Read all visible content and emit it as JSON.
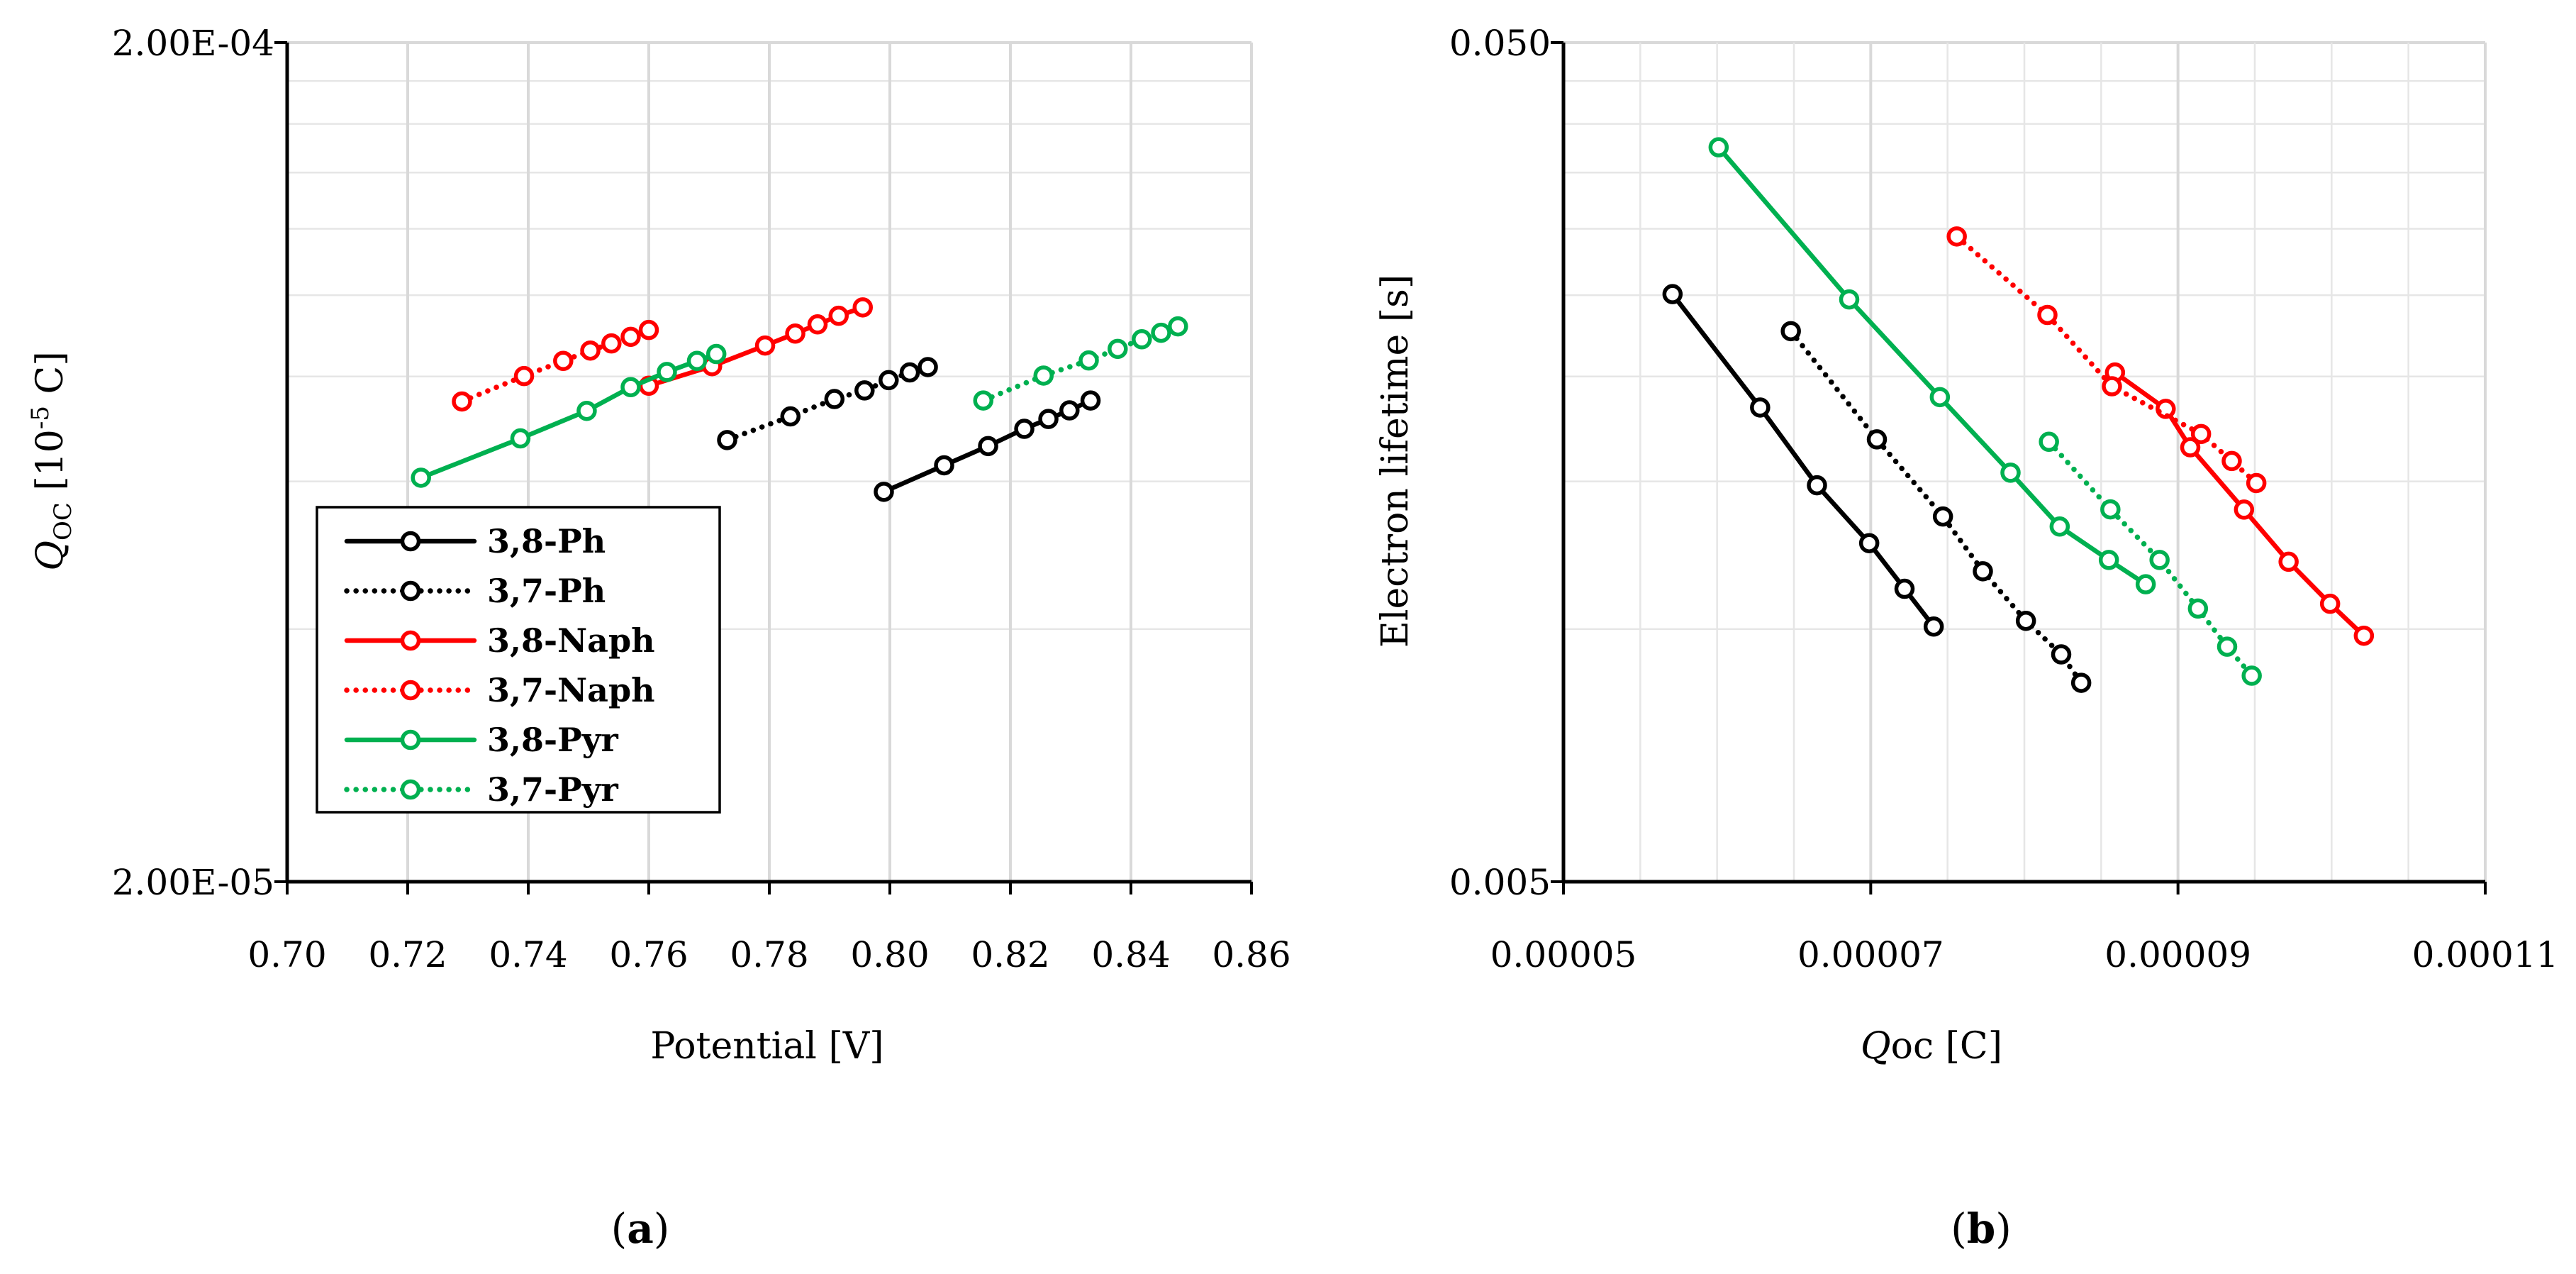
{
  "chart_data": [
    {
      "type": "line",
      "panel_label": "(a)",
      "title": "",
      "xlabel": "Potential [V]",
      "ylabel_main": "Q",
      "ylabel_sub": "OC",
      "ylabel_rest": " [10",
      "ylabel_exp": "-5",
      "ylabel_unit": " C]",
      "x_scale": "linear",
      "y_scale": "log",
      "xlim": [
        0.7,
        0.86
      ],
      "ylim": [
        2e-05,
        0.0002
      ],
      "x_ticks": [
        {
          "value": 0.7,
          "label": "0.70"
        },
        {
          "value": 0.72,
          "label": "0.72"
        },
        {
          "value": 0.74,
          "label": "0.74"
        },
        {
          "value": 0.76,
          "label": "0.76"
        },
        {
          "value": 0.78,
          "label": "0.78"
        },
        {
          "value": 0.8,
          "label": "0.80"
        },
        {
          "value": 0.82,
          "label": "0.82"
        },
        {
          "value": 0.84,
          "label": "0.84"
        },
        {
          "value": 0.86,
          "label": "0.86"
        }
      ],
      "y_ticks": [
        {
          "value": 2e-05,
          "label": "2.00E-05"
        },
        {
          "value": 0.0002,
          "label": "2.00E-04"
        }
      ],
      "grid": true,
      "legend_position": "bottom-left",
      "series": [
        {
          "name": "3,8-Ph",
          "color": "#000000",
          "dash": "solid",
          "x": [
            0.799,
            0.809,
            0.8163,
            0.8223,
            0.8263,
            0.8298,
            0.8333
          ],
          "y": [
            5.83e-05,
            6.27e-05,
            6.61e-05,
            6.93e-05,
            7.12e-05,
            7.29e-05,
            7.49e-05
          ]
        },
        {
          "name": "3,7-Ph",
          "color": "#000000",
          "dash": "dotted",
          "x": [
            0.773,
            0.7835,
            0.7908,
            0.7958,
            0.7998,
            0.8033,
            0.8063
          ],
          "y": [
            6.72e-05,
            7.17e-05,
            7.52e-05,
            7.7e-05,
            7.92e-05,
            8.09e-05,
            8.21e-05
          ]
        },
        {
          "name": "3,8-Naph",
          "color": "#ff0000",
          "dash": "solid",
          "x": [
            0.76,
            0.7705,
            0.7793,
            0.7843,
            0.788,
            0.7915,
            0.7955
          ],
          "y": [
            7.8e-05,
            8.23e-05,
            8.71e-05,
            9e-05,
            9.23e-05,
            9.45e-05,
            9.67e-05
          ]
        },
        {
          "name": "3,7-Naph",
          "color": "#ff0000",
          "dash": "dotted",
          "x": [
            0.729,
            0.7393,
            0.7458,
            0.7503,
            0.7538,
            0.757,
            0.76
          ],
          "y": [
            7.47e-05,
            8.01e-05,
            8.35e-05,
            8.59e-05,
            8.76e-05,
            8.92e-05,
            9.09e-05
          ]
        },
        {
          "name": "3,8-Pyr",
          "color": "#00b050",
          "dash": "solid",
          "x": [
            0.7222,
            0.7387,
            0.7497,
            0.757,
            0.763,
            0.768,
            0.7712
          ],
          "y": [
            6.06e-05,
            6.75e-05,
            7.28e-05,
            7.77e-05,
            8.1e-05,
            8.35e-05,
            8.51e-05
          ]
        },
        {
          "name": "3,7-Pyr",
          "color": "#00b050",
          "dash": "dotted",
          "x": [
            0.8155,
            0.8255,
            0.833,
            0.8378,
            0.8418,
            0.845,
            0.8478
          ],
          "y": [
            7.49e-05,
            8.02e-05,
            8.36e-05,
            8.63e-05,
            8.86e-05,
            9.02e-05,
            9.18e-05
          ]
        }
      ]
    },
    {
      "type": "line",
      "panel_label": "(b)",
      "title": "",
      "xlabel_main": "Q",
      "xlabel_rest": "oc [C]",
      "ylabel": "Electron lifetime [s]",
      "x_scale": "linear",
      "y_scale": "log",
      "xlim": [
        5e-05,
        0.00011
      ],
      "ylim": [
        0.005,
        0.05
      ],
      "x_ticks": [
        {
          "value": 5e-05,
          "label": "0.00005"
        },
        {
          "value": 7e-05,
          "label": "0.00007"
        },
        {
          "value": 9e-05,
          "label": "0.00009"
        },
        {
          "value": 0.00011,
          "label": "0.00011"
        }
      ],
      "y_ticks": [
        {
          "value": 0.005,
          "label": "0.005"
        },
        {
          "value": 0.05,
          "label": "0.050"
        }
      ],
      "grid": true,
      "series": [
        {
          "name": "3,8-Ph",
          "color": "#000000",
          "dash": "solid",
          "x": [
            5.71e-05,
            6.28e-05,
            6.65e-05,
            6.99e-05,
            7.22e-05,
            7.41e-05
          ],
          "y": [
            0.02507,
            0.01837,
            0.01484,
            0.01266,
            0.01117,
            0.01007
          ]
        },
        {
          "name": "3,7-Ph",
          "color": "#000000",
          "dash": "dotted",
          "x": [
            6.48e-05,
            7.04e-05,
            7.47e-05,
            7.73e-05,
            8.01e-05,
            8.24e-05,
            8.37e-05
          ],
          "y": [
            0.02265,
            0.01683,
            0.01362,
            0.01172,
            0.01023,
            0.00933,
            0.00863
          ]
        },
        {
          "name": "3,8-Naph",
          "color": "#ff0000",
          "dash": "solid",
          "x": [
            8.59e-05,
            8.92e-05,
            9.08e-05,
            9.43e-05,
            9.72e-05,
            9.99e-05,
            0.0001021
          ],
          "y": [
            0.02022,
            0.0183,
            0.01647,
            0.01388,
            0.01203,
            0.01072,
            0.00982
          ]
        },
        {
          "name": "3,7-Naph",
          "color": "#ff0000",
          "dash": "dotted",
          "x": [
            7.56e-05,
            8.15e-05,
            8.57e-05,
            9.15e-05,
            9.35e-05,
            9.51e-05
          ],
          "y": [
            0.02937,
            0.02368,
            0.01947,
            0.01708,
            0.01586,
            0.01493
          ]
        },
        {
          "name": "3,8-Pyr",
          "color": "#00b050",
          "dash": "solid",
          "x": [
            6.01e-05,
            6.86e-05,
            7.45e-05,
            7.91e-05,
            8.23e-05,
            8.55e-05,
            8.79e-05
          ],
          "y": [
            0.03751,
            0.02471,
            0.0189,
            0.01536,
            0.01325,
            0.01209,
            0.01131
          ]
        },
        {
          "name": "3,7-Pyr",
          "color": "#00b050",
          "dash": "dotted",
          "x": [
            8.16e-05,
            8.56e-05,
            8.88e-05,
            9.13e-05,
            9.32e-05,
            9.48e-05
          ],
          "y": [
            0.01672,
            0.01389,
            0.01209,
            0.01058,
            0.00953,
            0.0088
          ]
        }
      ]
    }
  ]
}
